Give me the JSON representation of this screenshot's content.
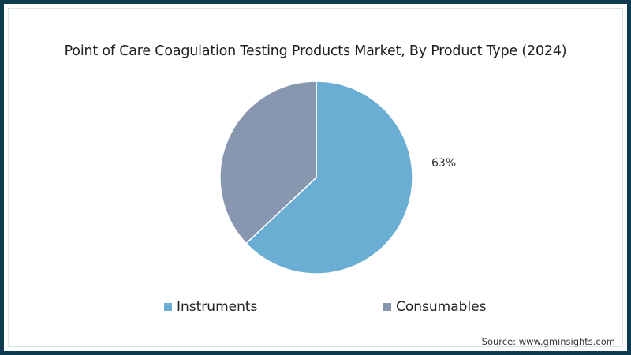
{
  "chart_data": {
    "type": "pie",
    "title": "Point of Care Coagulation Testing Products Market, By Product Type (2024)",
    "categories": [
      "Instruments",
      "Consumables"
    ],
    "values": [
      63,
      37
    ],
    "unit": "%",
    "data_labels": [
      {
        "category": "Instruments",
        "text": "63%"
      }
    ],
    "colors": [
      "#6aaed3",
      "#8797b0"
    ],
    "start_angle": "12 o'clock, clockwise",
    "legend_position": "bottom",
    "source": "Source: www.gminsights.com"
  },
  "title": "Point of Care Coagulation Testing Products Market, By Product Type (2024)",
  "labels": {
    "instruments_pct": "63%"
  },
  "legend": {
    "items": [
      {
        "label": "Instruments",
        "color": "#6aaed3"
      },
      {
        "label": "Consumables",
        "color": "#8797b0"
      }
    ]
  },
  "source": "Source: www.gminsights.com",
  "colors": {
    "frame": "#0e3b50",
    "instruments": "#6aaed3",
    "consumables": "#8797b0"
  }
}
